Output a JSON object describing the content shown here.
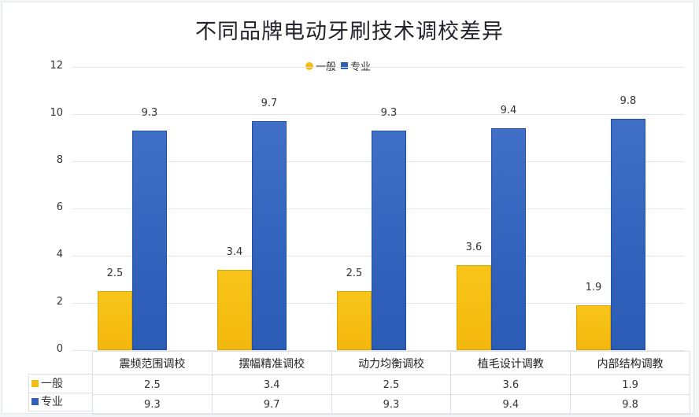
{
  "title": "不同品牌电动牙刷技术调校差异",
  "legend": {
    "items": [
      {
        "label": "一般",
        "color": "#f5bd12",
        "shape": "circle"
      },
      {
        "label": "专业",
        "color": "#2f5fb8",
        "shape": "square"
      }
    ]
  },
  "y_axis": {
    "ticks": [
      "0",
      "2",
      "4",
      "6",
      "8",
      "10",
      "12"
    ]
  },
  "data_table": {
    "categories": [
      "震频范围调校",
      "摆幅精准调校",
      "动力均衡调校",
      "植毛设计调教",
      "内部结构调教"
    ],
    "rows": [
      {
        "label": "一般",
        "values": [
          "2.5",
          "3.4",
          "2.5",
          "3.6",
          "1.9"
        ]
      },
      {
        "label": "专业",
        "values": [
          "9.3",
          "9.7",
          "9.3",
          "9.4",
          "9.8"
        ]
      }
    ]
  },
  "chart_data": {
    "type": "bar",
    "title": "不同品牌电动牙刷技术调校差异",
    "categories": [
      "震频范围调校",
      "摆幅精准调校",
      "动力均衡调校",
      "植毛设计调教",
      "内部结构调教"
    ],
    "series": [
      {
        "name": "一般",
        "color": "#f5bd12",
        "values": [
          2.5,
          3.4,
          2.5,
          3.6,
          1.9
        ]
      },
      {
        "name": "专业",
        "color": "#2f5fb8",
        "values": [
          9.3,
          9.7,
          9.3,
          9.4,
          9.8
        ]
      }
    ],
    "xlabel": "",
    "ylabel": "",
    "ylim": [
      0,
      12
    ],
    "yticks": [
      0,
      2,
      4,
      6,
      8,
      10,
      12
    ],
    "grid": true,
    "legend_position": "top",
    "data_labels": true,
    "data_table": true
  }
}
